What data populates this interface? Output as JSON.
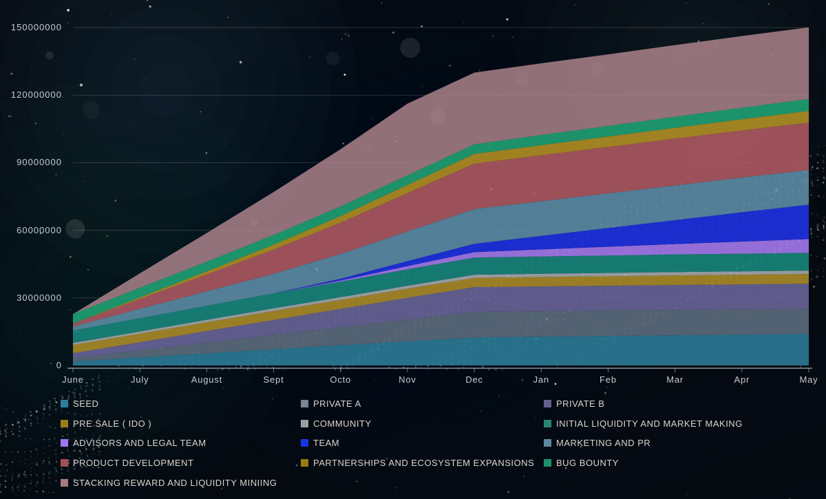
{
  "chart_data": {
    "type": "area",
    "stacked": true,
    "categories": [
      "June",
      "July",
      "August",
      "Sept",
      "Octo",
      "Nov",
      "Dec",
      "Jan",
      "Feb",
      "Mar",
      "Apr",
      "May"
    ],
    "ylim": [
      0,
      150000000
    ],
    "y_ticks": [
      {
        "value": 0,
        "label": "0"
      },
      {
        "value": 30000000,
        "label": "30000000"
      },
      {
        "value": 60000000,
        "label": "60000000"
      },
      {
        "value": 90000000,
        "label": "90000000"
      },
      {
        "value": 120000000,
        "label": "120000000"
      },
      {
        "value": 150000000,
        "label": "150000000"
      }
    ],
    "grid": "horizontal",
    "legend_position": "bottom",
    "legend_columns": 3,
    "series": [
      {
        "name": "SEED",
        "color": "#2d7d9b",
        "legend_color": "#2e7e9a",
        "fill_opacity": 0.88,
        "values": [
          1800000,
          3600000,
          5400000,
          7200000,
          9000000,
          10700000,
          12500000,
          12800000,
          13100000,
          13400000,
          13700000,
          14000000
        ]
      },
      {
        "name": "PRIVATE A",
        "color": "#5f6e80",
        "legend_color": "#7b8490",
        "fill_opacity": 0.88,
        "values": [
          1500000,
          3100000,
          4800000,
          6400000,
          8000000,
          9700000,
          11300000,
          11300000,
          11300000,
          11300000,
          11300000,
          11300000
        ]
      },
      {
        "name": "PRIVATE B",
        "color": "#6b669c",
        "legend_color": "#67608f",
        "fill_opacity": 0.88,
        "values": [
          2100000,
          3600000,
          5100000,
          6600000,
          8100000,
          9600000,
          11000000,
          11000000,
          11000000,
          11000000,
          11000000,
          11000000
        ]
      },
      {
        "name": "PRE SALE ( IDO )",
        "color": "#aa8b28",
        "legend_color": "#9c7d15",
        "fill_opacity": 0.9,
        "values": [
          3700000,
          3800000,
          3900000,
          4000000,
          4000000,
          4100000,
          4100000,
          4200000,
          4200000,
          4300000,
          4300000,
          4300000
        ]
      },
      {
        "name": "COMMUNITY",
        "color": "#b0b3b6",
        "legend_color": "#9b9e9f",
        "fill_opacity": 0.85,
        "values": [
          900000,
          1000000,
          1100000,
          1200000,
          1200000,
          1300000,
          1400000,
          1400000,
          1500000,
          1500000,
          1500000,
          1500000
        ]
      },
      {
        "name": "INITIAL LIQUIDITY AND MARKET MAKING",
        "color": "#18867b",
        "legend_color": "#2b8577",
        "fill_opacity": 0.9,
        "values": [
          5500000,
          5900000,
          6200000,
          6600000,
          6900000,
          7300000,
          7600000,
          7700000,
          7700000,
          7800000,
          7800000,
          7900000
        ]
      },
      {
        "name": "ADVISORS AND LEGAL TEAM",
        "color": "#a47aec",
        "legend_color": "#a673f2",
        "fill_opacity": 0.9,
        "values": [
          0,
          0,
          0,
          0,
          500000,
          1400000,
          2400000,
          3100000,
          3900000,
          4600000,
          5400000,
          6100000
        ]
      },
      {
        "name": "TEAM",
        "color": "#1e31dd",
        "legend_color": "#1733e8",
        "fill_opacity": 0.92,
        "values": [
          0,
          0,
          0,
          0,
          800000,
          2200000,
          3700000,
          6000000,
          8300000,
          10600000,
          13000000,
          15300000
        ]
      },
      {
        "name": "MARKETING AND PR",
        "color": "#6093ae",
        "legend_color": "#5e88a0",
        "fill_opacity": 0.85,
        "values": [
          1800000,
          4100000,
          6400000,
          8700000,
          11000000,
          13200000,
          15400000,
          15400000,
          15400000,
          15400000,
          15400000,
          15400000
        ]
      },
      {
        "name": "PRODUCT DEVELOPMENT",
        "color": "#b25a63",
        "legend_color": "#a25059",
        "fill_opacity": 0.88,
        "values": [
          1200000,
          4400000,
          7500000,
          10700000,
          13900000,
          17000000,
          20200000,
          20400000,
          20600000,
          20800000,
          20900000,
          21000000
        ]
      },
      {
        "name": "PARTNERSHIPS AND ECOSYSTEM EXPANSIONS",
        "color": "#ac8c23",
        "legend_color": "#9a7b10",
        "fill_opacity": 0.92,
        "values": [
          0,
          700000,
          1400000,
          2200000,
          2900000,
          3600000,
          4300000,
          4500000,
          4600000,
          4800000,
          5000000,
          5200000
        ]
      },
      {
        "name": "BUG BOUNTY",
        "color": "#1f9e72",
        "legend_color": "#20906a",
        "fill_opacity": 0.92,
        "values": [
          4300000,
          4300000,
          4300000,
          4300000,
          4300000,
          4300000,
          4300000,
          4500000,
          4700000,
          4900000,
          5100000,
          5300000
        ]
      },
      {
        "name": "STACKING REWARD AND LIQUIDITY MINIING",
        "color": "#bb8d95",
        "legend_color": "#a77a82",
        "fill_opacity": 0.78,
        "values": [
          0,
          6400000,
          12700000,
          19100000,
          25400000,
          31800000,
          31800000,
          31800000,
          31800000,
          31800000,
          31800000,
          31800000
        ]
      }
    ]
  },
  "axes": {
    "text_color": "#c7cbd2",
    "axis_line_color": "#c4cad4",
    "gridline_color": "#ffffff"
  },
  "background": {
    "base_color": "#05090f",
    "glow_color": "#1d4a5a",
    "particle_color": "#ffffff"
  }
}
